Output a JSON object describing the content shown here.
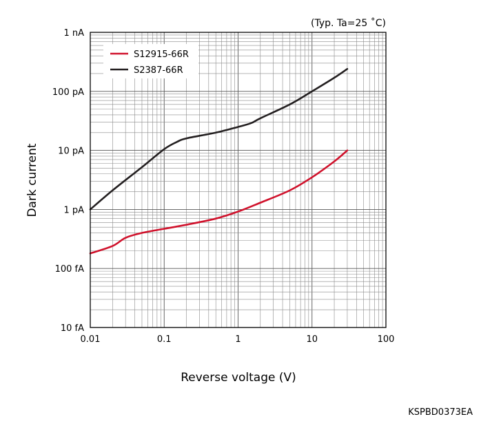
{
  "chart_data": {
    "type": "line",
    "condition_note": "(Typ. Ta=25 ˚C)",
    "xlabel": "Reverse voltage (V)",
    "ylabel": "Dark current",
    "x_scale": "log",
    "y_scale": "log",
    "xlim": [
      0.01,
      100
    ],
    "ylim": [
      "10 fA",
      "1 nA"
    ],
    "x_ticks": [
      "0.01",
      "0.1",
      "1",
      "10",
      "100"
    ],
    "y_ticks": [
      "1 nA",
      "100 pA",
      "10 pA",
      "1 pA",
      "100 fA",
      "10 fA"
    ],
    "grid": true,
    "legend_position": "top-left",
    "series": [
      {
        "name": "S12915-66R",
        "color": "#d0112b",
        "unit": "A",
        "x": [
          0.01,
          0.02,
          0.03,
          0.05,
          0.1,
          0.2,
          0.5,
          1,
          2,
          5,
          10,
          20,
          30
        ],
        "y": [
          1.8e-13,
          2.4e-13,
          3.3e-13,
          4e-13,
          4.7e-13,
          5.5e-13,
          7e-13,
          9.2e-13,
          1.3e-12,
          2.1e-12,
          3.5e-12,
          6.5e-12,
          1e-11
        ]
      },
      {
        "name": "S2387-66R",
        "color": "#231f20",
        "unit": "A",
        "x": [
          0.01,
          0.02,
          0.05,
          0.1,
          0.15,
          0.2,
          0.5,
          1,
          1.5,
          2,
          5,
          10,
          20,
          30
        ],
        "y": [
          1e-12,
          2.1e-12,
          5.2e-12,
          1.05e-11,
          1.4e-11,
          1.6e-11,
          2e-11,
          2.5e-11,
          2.9e-11,
          3.5e-11,
          6e-11,
          1e-10,
          1.7e-10,
          2.4e-10
        ]
      }
    ]
  },
  "document_code": "KSPBD0373EA"
}
